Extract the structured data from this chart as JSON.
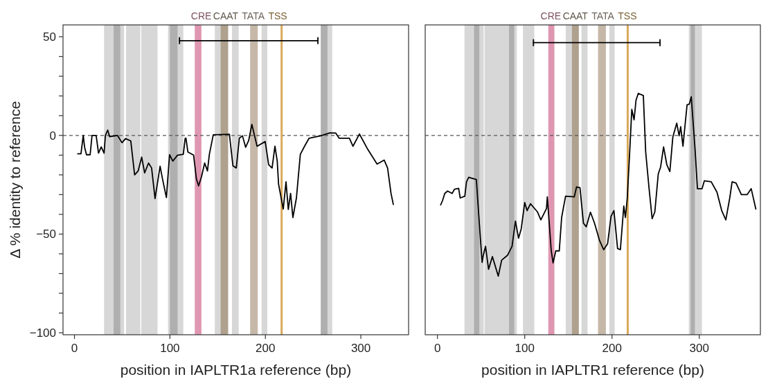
{
  "chart_data": [
    {
      "type": "line",
      "xlabel": "position in IAPLTR1a reference (bp)",
      "ylabel": "Δ % identity to reference",
      "xlim": [
        -12,
        350
      ],
      "ylim": [
        -101,
        56
      ],
      "xticks": [
        0,
        100,
        200,
        300
      ],
      "yticks": [
        {
          "value": -100,
          "label": "−100"
        },
        {
          "value": -90,
          "label": null
        },
        {
          "value": -80,
          "label": null
        },
        {
          "value": -70,
          "label": null
        },
        {
          "value": -60,
          "label": null
        },
        {
          "value": -50,
          "label": "−50"
        },
        {
          "value": -40,
          "label": null
        },
        {
          "value": -30,
          "label": null
        },
        {
          "value": -20,
          "label": null
        },
        {
          "value": -10,
          "label": null
        },
        {
          "value": 0,
          "label": "0"
        },
        {
          "value": 10,
          "label": null
        },
        {
          "value": 20,
          "label": null
        },
        {
          "value": 30,
          "label": null
        },
        {
          "value": 40,
          "label": null
        },
        {
          "value": 50,
          "label": "50"
        }
      ],
      "series": [
        {
          "color": "#000000",
          "x": [
            3.4,
            6.8,
            9.2,
            10.6,
            12.6,
            16.4,
            18.4,
            22.7,
            25.2,
            28,
            31,
            32.4,
            34.8,
            36.8,
            45,
            49.8,
            53.5,
            59,
            63,
            66.7,
            70.4,
            73.5,
            77.6,
            80.8,
            84.4,
            89.7,
            92.2,
            96.3,
            99.6,
            103,
            108,
            114,
            116,
            116.8,
            118.8,
            124.8,
            127.7,
            130,
            133,
            136.4,
            139.3,
            141.3,
            145.4,
            162.3,
            166,
            169.5,
            172.7,
            176,
            179.3,
            182.5,
            185.8,
            191.3,
            199.8,
            203.4,
            207,
            210,
            212.4,
            213.8,
            218.7,
            221.6,
            224,
            226.4,
            228.8,
            232.5,
            236.6,
            241,
            245.8,
            257.9,
            267.5,
            273.6,
            277.2,
            288,
            291.7,
            298.5,
            307.4,
            317,
            324.4,
            328,
            331.6,
            334
          ],
          "values": [
            -9.3,
            -9.3,
            0,
            -6,
            -9.8,
            -9.8,
            0,
            0,
            -9,
            -5.8,
            -9,
            0,
            2.7,
            -0.6,
            0,
            -3.7,
            -1.6,
            -2.8,
            -20,
            -18,
            -11,
            -19,
            -14,
            -16.5,
            -32,
            -15.6,
            -22,
            -31.5,
            -9.8,
            -13,
            -10,
            -9.6,
            -1.4,
            -1.4,
            -8.4,
            -10,
            -22,
            -25.6,
            -21,
            -14,
            -18,
            -9.6,
            0.3,
            0.6,
            -15.4,
            -16.5,
            -1.4,
            -0.2,
            -6,
            -2.6,
            5.6,
            -5.5,
            -3.1,
            -14.8,
            -16.5,
            -5.5,
            -13,
            -24.7,
            -37.3,
            -23.5,
            -37.5,
            -29.4,
            -41.6,
            -31.7,
            -9.6,
            -5.5,
            -1.4,
            -0.2,
            1.3,
            1.2,
            -1.4,
            -1.4,
            -5.5,
            0.7,
            -7.2,
            -14.5,
            -12.5,
            -16.5,
            -29.4,
            -35
          ]
        },
        {
          "color": "#000000",
          "x": [
            110,
            255
          ],
          "values": [
            48,
            48
          ]
        }
      ],
      "ref_lines": [
        {
          "axis": "y",
          "value": 0,
          "line_style": "dashed",
          "color": "#555555"
        },
        {
          "axis": "x",
          "value": 217,
          "label": "TSS",
          "color": "#d9a95a"
        }
      ],
      "bands": [
        {
          "axis": "x",
          "from": 31,
          "to": 52,
          "color": "#d3d3d3"
        },
        {
          "axis": "x",
          "from": 41,
          "to": 48,
          "color": "#ababab"
        },
        {
          "axis": "x",
          "from": 54,
          "to": 69,
          "color": "#d3d3d3"
        },
        {
          "axis": "x",
          "from": 70,
          "to": 87,
          "color": "#d3d3d3"
        },
        {
          "axis": "x",
          "from": 98,
          "to": 114,
          "color": "#d3d3d3"
        },
        {
          "axis": "x",
          "from": 100,
          "to": 108,
          "color": "#ababab"
        },
        {
          "axis": "x",
          "from": 147,
          "to": 153,
          "color": "#d3d3d3"
        },
        {
          "axis": "x",
          "from": 165,
          "to": 172,
          "color": "#d3d3d3"
        },
        {
          "axis": "x",
          "from": 196,
          "to": 202,
          "color": "#d3d3d3"
        },
        {
          "axis": "x",
          "from": 258,
          "to": 270,
          "color": "#d3d3d3"
        },
        {
          "axis": "x",
          "from": 258,
          "to": 265,
          "color": "#ababab"
        },
        {
          "axis": "x",
          "from": 126,
          "to": 133,
          "label": "CRE",
          "color": "#dc8ca8"
        },
        {
          "axis": "x",
          "from": 153,
          "to": 161,
          "label": "CAAT",
          "color": "#a69782"
        },
        {
          "axis": "x",
          "from": 184,
          "to": 192,
          "label": "TATA",
          "color": "#c0b09e"
        }
      ]
    },
    {
      "type": "line",
      "xlabel": "position in IAPLTR1 reference (bp)",
      "xlim": [
        -14,
        370
      ],
      "ylim": [
        -101,
        56
      ],
      "xticks": [
        0,
        100,
        200,
        300
      ],
      "tick_labels": "x",
      "series": [
        {
          "color": "#000000",
          "x": [
            3.7,
            5.8,
            8.4,
            11.6,
            16.9,
            19.5,
            24.3,
            26.1,
            31.4,
            33.3,
            35.9,
            44.6,
            48,
            51.2,
            52.5,
            55.1,
            58.6,
            63,
            69.7,
            73.6,
            80.2,
            85.5,
            89.4,
            92.9,
            96,
            100,
            102.7,
            106.6,
            114.5,
            118.5,
            125,
            125.9,
            130.4,
            132.5,
            135.6,
            139.6,
            142.3,
            146.8,
            156.8,
            159.4,
            163.3,
            167.3,
            170.5,
            175.3,
            180,
            185.8,
            190.5,
            195,
            198.9,
            202.2,
            206.4,
            209.6,
            213.5,
            215.4,
            217.5,
            220,
            222.7,
            225.3,
            227.5,
            230.1,
            235.9,
            238.6,
            242.5,
            246,
            249.1,
            253,
            255.7,
            259.1,
            262.8,
            266.3,
            269.7,
            274.2,
            276.9,
            278.7,
            281.3,
            286,
            288.6,
            290.8,
            295.1,
            297.9,
            303.2,
            305.8,
            313.7,
            320.3,
            325.7,
            330.4,
            334.9,
            337.6,
            342.1,
            348.2,
            354.8,
            359.5,
            364.8
          ],
          "values": [
            -35.2,
            -33.1,
            -29.4,
            -28.2,
            -29.4,
            -27.3,
            -26.8,
            -31.7,
            -30.8,
            -23.5,
            -21.2,
            -22.4,
            -44.5,
            -64.3,
            -60.8,
            -56.2,
            -67.8,
            -61.4,
            -71.3,
            -63.2,
            -60.8,
            -56.2,
            -43.4,
            -52.1,
            -47.4,
            -34,
            -38.1,
            -34.6,
            -38.7,
            -42.8,
            -37,
            -31.1,
            -58.5,
            -64.6,
            -58.5,
            -58.5,
            -41.6,
            -30.8,
            -31.1,
            -26.1,
            -26.5,
            -44.5,
            -46.3,
            -38.9,
            -44.5,
            -53.3,
            -57.9,
            -54.8,
            -41,
            -38.1,
            -57.3,
            -57.9,
            -35.8,
            -41.6,
            -31.7,
            -10.7,
            13.2,
            7.9,
            17.8,
            21.3,
            20.2,
            -8.4,
            -27,
            -42.2,
            -38.7,
            -19.5,
            -16,
            -5.8,
            -14.8,
            -18.3,
            -0.8,
            6.2,
            -0.2,
            4.4,
            -5.5,
            15.5,
            15.9,
            19.6,
            -6.6,
            -27,
            -27,
            -23,
            -23.5,
            -28.8,
            -38.1,
            -42.8,
            -31.7,
            -23.5,
            -24.1,
            -30,
            -30,
            -27,
            -37.3
          ]
        },
        {
          "color": "#000000",
          "x": [
            110,
            255
          ],
          "values": [
            47,
            47
          ]
        }
      ],
      "ref_lines": [
        {
          "axis": "y",
          "value": 0,
          "line_style": "dashed",
          "color": "#555555"
        },
        {
          "axis": "x",
          "value": 218,
          "label": "TSS",
          "color": "#d9a95a"
        }
      ],
      "bands": [
        {
          "axis": "x",
          "from": 31,
          "to": 53,
          "color": "#d3d3d3"
        },
        {
          "axis": "x",
          "from": 42,
          "to": 48,
          "color": "#ababab"
        },
        {
          "axis": "x",
          "from": 54,
          "to": 70,
          "color": "#d3d3d3"
        },
        {
          "axis": "x",
          "from": 70,
          "to": 91,
          "color": "#d3d3d3"
        },
        {
          "axis": "x",
          "from": 82,
          "to": 88,
          "color": "#ababab"
        },
        {
          "axis": "x",
          "from": 98,
          "to": 111,
          "color": "#d3d3d3"
        },
        {
          "axis": "x",
          "from": 147,
          "to": 154,
          "color": "#d3d3d3"
        },
        {
          "axis": "x",
          "from": 165,
          "to": 172,
          "color": "#d3d3d3"
        },
        {
          "axis": "x",
          "from": 197,
          "to": 203,
          "color": "#d3d3d3"
        },
        {
          "axis": "x",
          "from": 288,
          "to": 303,
          "color": "#d3d3d3"
        },
        {
          "axis": "x",
          "from": 290,
          "to": 295,
          "color": "#ababab"
        },
        {
          "axis": "x",
          "from": 127,
          "to": 134,
          "label": "CRE",
          "color": "#dc8ca8"
        },
        {
          "axis": "x",
          "from": 154,
          "to": 162,
          "label": "CAAT",
          "color": "#a69782"
        },
        {
          "axis": "x",
          "from": 184,
          "to": 193,
          "label": "TATA",
          "color": "#c0b09e"
        }
      ]
    }
  ]
}
